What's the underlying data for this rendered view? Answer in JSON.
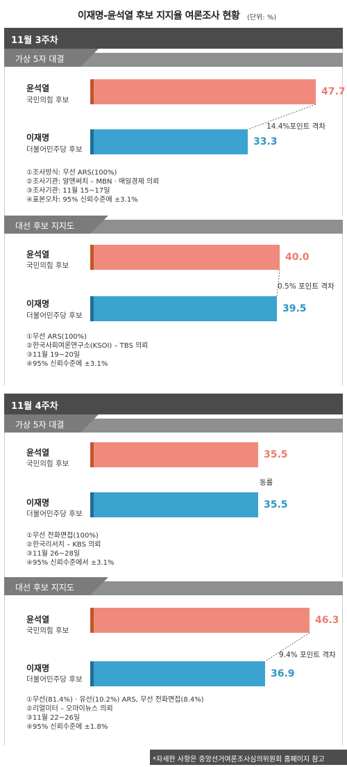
{
  "title": "이재명-윤석열 후보  지지율 여론조사 현황",
  "unit": "(단위: %)",
  "footer": "*자세한 사항은 중앙선거여론조사심의위원회 홈페이지 참고",
  "colors": {
    "yoon": "#f08a7c",
    "lee": "#3ba3cf"
  },
  "weeks": [
    {
      "label": "11월 3주차"
    },
    {
      "label": "11월 4주차"
    }
  ],
  "charts": [
    {
      "tab": "가상 5자 대결",
      "gap_label": "14.4%포인트 격차",
      "candidates": [
        {
          "name": "윤석열",
          "party": "국민의힘 후보",
          "value": "47.7"
        },
        {
          "name": "이재명",
          "party": "더불어민주당 후보",
          "value": "33.3"
        }
      ],
      "methodology": [
        "①조사방식: 무선 ARS(100%)",
        "②조사기관: 알앤써치 – MBN · 매일경제 의뢰",
        "③조사기관: 11월 15~17일",
        "④표본오차: 95% 신뢰수준에 ±3.1%"
      ]
    },
    {
      "tab": "대선 후보 지지도",
      "gap_label": "0.5% 포인트 격차",
      "candidates": [
        {
          "name": "윤석열",
          "party": "국민의힘 후보",
          "value": "40.0"
        },
        {
          "name": "이재명",
          "party": "더불어민주당 후보",
          "value": "39.5"
        }
      ],
      "methodology": [
        "①무선 ARS(100%)",
        "②한국사회여론연구소(KSOI) – TBS 의뢰",
        "③11월 19~20일",
        "④95% 신뢰수준에 ±3.1%"
      ]
    },
    {
      "tab": "가상 5자 대결",
      "gap_label": "동률",
      "candidates": [
        {
          "name": "윤석열",
          "party": "국민의힘 후보",
          "value": "35.5"
        },
        {
          "name": "이재명",
          "party": "더불어민주당 후보",
          "value": "35.5"
        }
      ],
      "methodology": [
        "①무선 전화면접(100%)",
        "②한국리서치 – KBS 의뢰",
        "③11월 26~28일",
        "④95% 신뢰수준에서 ±3.1%"
      ]
    },
    {
      "tab": "대선 후보 지지도",
      "gap_label": "9.4% 포인트 격차",
      "candidates": [
        {
          "name": "윤석열",
          "party": "국민의힘 후보",
          "value": "46.3"
        },
        {
          "name": "이재명",
          "party": "더불어민주당 후보",
          "value": "36.9"
        }
      ],
      "methodology": [
        "①무선(81.4%) · 유선(10.2%) ARS, 무선 전화면접(8.4%)",
        "②리얼미터 – 오마이뉴스 의뢰",
        "③11월 22~26일",
        "④95% 신뢰수준에 ±1.8%"
      ]
    }
  ],
  "chart_data": [
    {
      "type": "bar",
      "title": "가상 5자 대결",
      "categories": [
        "윤석열",
        "이재명"
      ],
      "values": [
        47.7,
        33.3
      ]
    },
    {
      "type": "bar",
      "title": "대선 후보 지지도",
      "categories": [
        "윤석열",
        "이재명"
      ],
      "values": [
        40.0,
        39.5
      ]
    },
    {
      "type": "bar",
      "title": "가상 5자 대결",
      "categories": [
        "윤석열",
        "이재명"
      ],
      "values": [
        35.5,
        35.5
      ]
    },
    {
      "type": "bar",
      "title": "대선 후보 지지도",
      "categories": [
        "윤석열",
        "이재명"
      ],
      "values": [
        46.3,
        36.9
      ]
    }
  ]
}
